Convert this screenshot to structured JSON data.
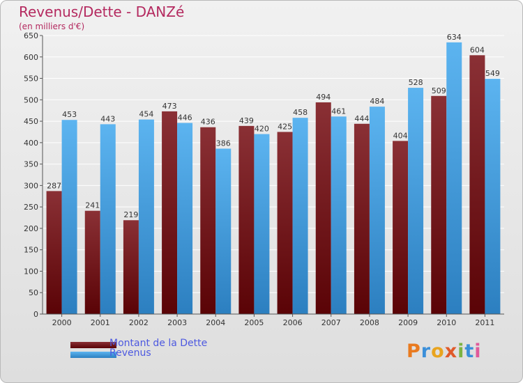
{
  "header": {
    "title": "Revenus/Dette - DANZé",
    "subtitle": "(en milliers d'€)"
  },
  "legend": [
    {
      "label": "Montant de la Dette",
      "color": "#6b0f12"
    },
    {
      "label": "Revenus",
      "color": "#4aa3e6"
    }
  ],
  "logo": {
    "letters": [
      "P",
      "r",
      "o",
      "x",
      "i",
      "t",
      "i"
    ],
    "colors": [
      "#e97a1f",
      "#3b8fd9",
      "#e9a41f",
      "#e05a2a",
      "#7cb342",
      "#3b8fd9",
      "#e05a9a"
    ]
  },
  "chart_data": {
    "type": "bar",
    "categories": [
      "2000",
      "2001",
      "2002",
      "2003",
      "2004",
      "2005",
      "2006",
      "2007",
      "2008",
      "2009",
      "2010",
      "2011"
    ],
    "series": [
      {
        "name": "Montant de la Dette",
        "values": [
          287,
          241,
          219,
          473,
          436,
          439,
          425,
          494,
          444,
          404,
          509,
          604
        ]
      },
      {
        "name": "Revenus",
        "values": [
          453,
          443,
          454,
          446,
          386,
          420,
          458,
          461,
          484,
          528,
          634,
          549
        ]
      }
    ],
    "ylim": [
      0,
      650
    ],
    "yticks": [
      0,
      50,
      100,
      150,
      200,
      250,
      300,
      350,
      400,
      450,
      500,
      550,
      600,
      650
    ],
    "grid": true,
    "legend_position": "bottom-left"
  }
}
